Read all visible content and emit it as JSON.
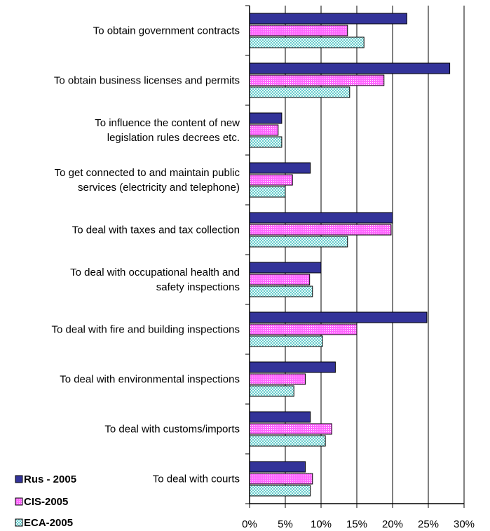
{
  "chart_data": {
    "type": "bar",
    "orientation": "horizontal",
    "categories": [
      [
        "To obtain government contracts"
      ],
      [
        "To obtain business licenses and permits"
      ],
      [
        "To influence the content of new",
        "legislation rules decrees etc."
      ],
      [
        "To get connected to and maintain public",
        "services (electricity and telephone)"
      ],
      [
        "To deal with taxes and tax collection"
      ],
      [
        "To deal with occupational health and",
        "safety inspections"
      ],
      [
        "To deal with fire and building inspections"
      ],
      [
        "To deal with environmental inspections"
      ],
      [
        "To deal with customs/imports"
      ],
      [
        "To deal with courts"
      ]
    ],
    "series": [
      {
        "name": "Rus - 2005",
        "color": "#333399",
        "pattern": "solid",
        "values": [
          22,
          28,
          4.5,
          8.5,
          20,
          10,
          24.8,
          12,
          8.5,
          7.8
        ]
      },
      {
        "name": "CIS-2005",
        "color": "#ff66ff",
        "pattern": "dots",
        "values": [
          13.7,
          18.8,
          4,
          6,
          19.8,
          8.4,
          15,
          7.8,
          11.5,
          8.8
        ]
      },
      {
        "name": "ECA-2005",
        "color": "#66cccc",
        "pattern": "checker",
        "values": [
          16,
          14,
          4.5,
          5,
          13.7,
          8.8,
          10.2,
          6.2,
          10.6,
          8.5
        ]
      }
    ],
    "x_ticks": [
      "0%",
      "5%",
      "10%",
      "15%",
      "20%",
      "25%",
      "30%"
    ],
    "xlim": [
      0,
      30
    ],
    "grid": true,
    "legend_position": "bottom-left"
  }
}
